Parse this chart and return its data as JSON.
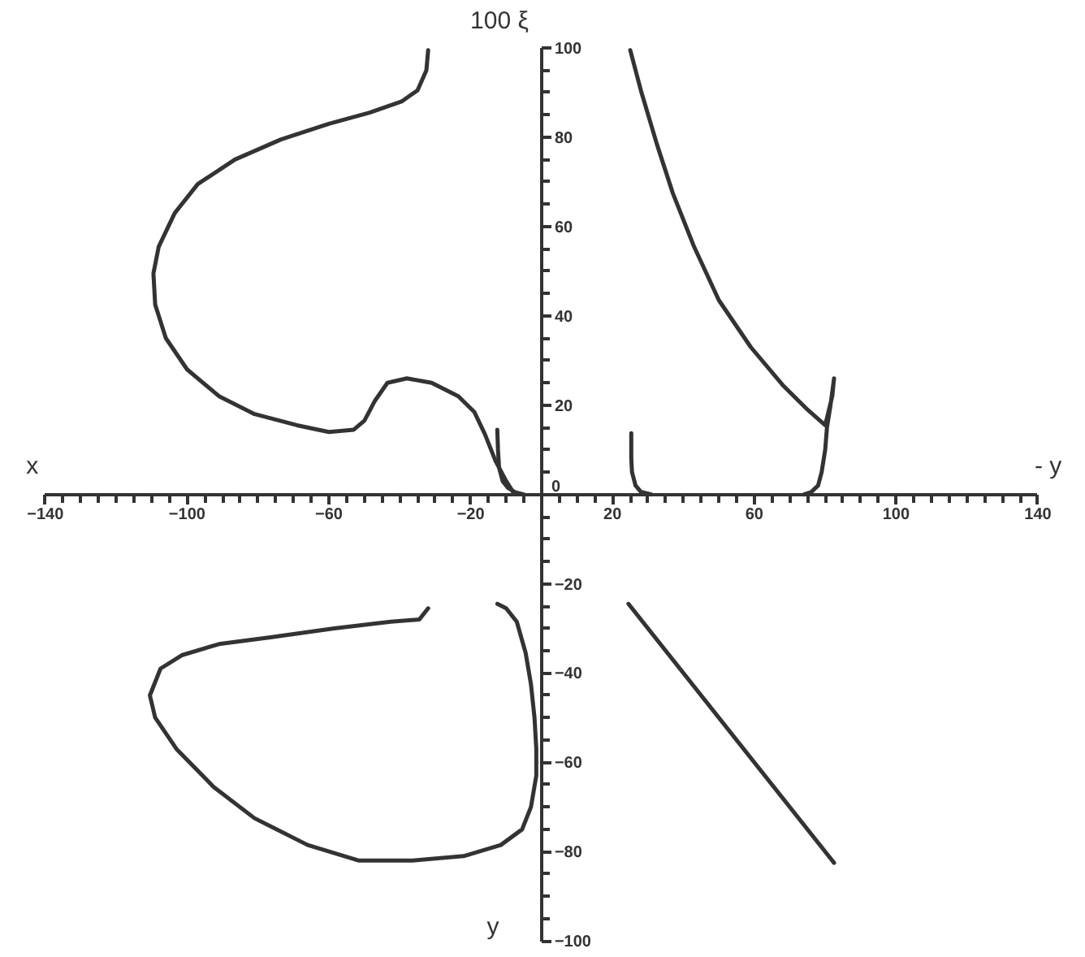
{
  "chart_data": {
    "type": "line",
    "xlabel": "x",
    "ylabel": "100 ξ",
    "annotations": [
      "- y",
      "y"
    ],
    "xlim": [
      -140,
      140
    ],
    "ylim": [
      -100,
      100
    ],
    "xticks": [
      -140,
      {
        "value": -135,
        "label": null
      },
      {
        "value": -130,
        "label": null
      },
      {
        "value": -125,
        "label": null
      },
      {
        "value": -120,
        "label": null
      },
      {
        "value": -115,
        "label": null
      },
      {
        "value": -110,
        "label": null
      },
      {
        "value": -105,
        "label": null
      },
      -100,
      {
        "value": -95,
        "label": null
      },
      {
        "value": -90,
        "label": null
      },
      {
        "value": -85,
        "label": null
      },
      {
        "value": -80,
        "label": null
      },
      {
        "value": -75,
        "label": null
      },
      {
        "value": -70,
        "label": null
      },
      {
        "value": -65,
        "label": null
      },
      -60,
      {
        "value": -55,
        "label": null
      },
      {
        "value": -50,
        "label": null
      },
      {
        "value": -45,
        "label": null
      },
      {
        "value": -40,
        "label": null
      },
      {
        "value": -35,
        "label": null
      },
      {
        "value": -30,
        "label": null
      },
      {
        "value": -25,
        "label": null
      },
      -20,
      {
        "value": -15,
        "label": null
      },
      {
        "value": -10,
        "label": null
      },
      {
        "value": -5,
        "label": null
      },
      {
        "value": 5,
        "label": null
      },
      {
        "value": 10,
        "label": null
      },
      {
        "value": 15,
        "label": null
      },
      20,
      {
        "value": 25,
        "label": null
      },
      {
        "value": 30,
        "label": null
      },
      {
        "value": 35,
        "label": null
      },
      {
        "value": 40,
        "label": null
      },
      {
        "value": 45,
        "label": null
      },
      {
        "value": 50,
        "label": null
      },
      {
        "value": 55,
        "label": null
      },
      60,
      {
        "value": 65,
        "label": null
      },
      {
        "value": 70,
        "label": null
      },
      {
        "value": 75,
        "label": null
      },
      {
        "value": 80,
        "label": null
      },
      {
        "value": 85,
        "label": null
      },
      {
        "value": 90,
        "label": null
      },
      {
        "value": 95,
        "label": null
      },
      100,
      {
        "value": 105,
        "label": null
      },
      {
        "value": 110,
        "label": null
      },
      {
        "value": 115,
        "label": null
      },
      {
        "value": 120,
        "label": null
      },
      {
        "value": 125,
        "label": null
      },
      {
        "value": 130,
        "label": null
      },
      {
        "value": 135,
        "label": null
      },
      140
    ],
    "yticks": [
      -100,
      {
        "value": -95,
        "label": null
      },
      {
        "value": -90,
        "label": null
      },
      {
        "value": -85,
        "label": null
      },
      -80,
      {
        "value": -75,
        "label": null
      },
      {
        "value": -70,
        "label": null
      },
      {
        "value": -65,
        "label": null
      },
      -60,
      {
        "value": -55,
        "label": null
      },
      {
        "value": -50,
        "label": null
      },
      {
        "value": -45,
        "label": null
      },
      -40,
      {
        "value": -35,
        "label": null
      },
      {
        "value": -30,
        "label": null
      },
      {
        "value": -25,
        "label": null
      },
      -20,
      {
        "value": -15,
        "label": null
      },
      {
        "value": -10,
        "label": null
      },
      {
        "value": -5,
        "label": null
      },
      0,
      {
        "value": 5,
        "label": null
      },
      {
        "value": 10,
        "label": null
      },
      {
        "value": 15,
        "label": null
      },
      20,
      {
        "value": 25,
        "label": null
      },
      {
        "value": 30,
        "label": null
      },
      {
        "value": 35,
        "label": null
      },
      40,
      {
        "value": 45,
        "label": null
      },
      {
        "value": 50,
        "label": null
      },
      {
        "value": 55,
        "label": null
      },
      60,
      {
        "value": 65,
        "label": null
      },
      {
        "value": 70,
        "label": null
      },
      {
        "value": 75,
        "label": null
      },
      80,
      {
        "value": 85,
        "label": null
      },
      {
        "value": 90,
        "label": null
      },
      {
        "value": 95,
        "label": null
      },
      100
    ],
    "series": [
      {
        "color": "#333333",
        "x": [
          -32,
          -32.5,
          -35,
          -39.5,
          -48.5,
          -60,
          -73.5,
          -86.5,
          -97,
          -103.5,
          -108,
          -109.5,
          -109,
          -106,
          -100,
          -91,
          -81,
          -69,
          -60,
          -53,
          -50,
          -47,
          -43.5,
          -38,
          -31,
          -23.5,
          -19,
          -16,
          -13,
          -10,
          -8,
          -5.5
        ],
        "values": [
          99.5,
          95,
          90.5,
          88,
          85.5,
          83,
          79.5,
          75,
          69.5,
          63,
          55.5,
          49.5,
          42.5,
          35,
          28,
          22,
          18,
          15.5,
          14,
          14.5,
          16.5,
          21,
          25,
          26,
          25,
          22,
          18.5,
          13.5,
          7.5,
          3,
          0.5,
          0
        ]
      },
      {
        "color": "#333333",
        "x": [
          -12.5,
          -12.3,
          -12,
          -11,
          -9.5,
          -7.5,
          -5
        ],
        "values": [
          14.5,
          10,
          6,
          3,
          1.5,
          0.5,
          0
        ]
      },
      {
        "color": "#333333",
        "x": [
          25,
          28,
          32.5,
          37,
          43,
          50,
          59,
          68,
          75,
          80,
          82,
          82.5,
          81.5,
          80.5,
          80,
          79,
          78,
          76,
          74
        ],
        "values": [
          99.5,
          90.5,
          78.5,
          67.5,
          55.5,
          43.5,
          33,
          24.5,
          19,
          15.5,
          22,
          26,
          20,
          15,
          10,
          5,
          2,
          0.5,
          0
        ]
      },
      {
        "color": "#333333",
        "x": [
          25.3,
          25.3,
          25.5,
          26.5,
          28,
          31
        ],
        "values": [
          13.7,
          8,
          5,
          2,
          0.6,
          0
        ]
      },
      {
        "color": "#333333",
        "x": [
          -32,
          -34.5,
          -42.5,
          -58.5,
          -76.5,
          -91,
          -101.5,
          -107.5,
          -110.5,
          -109,
          -103,
          -92.5,
          -81,
          -66,
          -51.5,
          -36.5,
          -22,
          -11.5,
          -5.5,
          -3,
          -1.5,
          -1.5,
          -2,
          -3,
          -4.5,
          -7,
          -10,
          -12.5
        ],
        "values": [
          -25.5,
          -28,
          -28.5,
          -30,
          -32,
          -33.5,
          -36,
          -39,
          -45,
          -50,
          -57,
          -65.5,
          -72.5,
          -78.5,
          -82,
          -82,
          -81,
          -78.5,
          -75,
          -70,
          -63,
          -57,
          -50,
          -42.5,
          -35.5,
          -28.5,
          -25.5,
          -24.5
        ]
      },
      {
        "color": "#333333",
        "x": [
          24.5,
          82.5
        ],
        "values": [
          -24.5,
          -82.5
        ]
      }
    ]
  }
}
